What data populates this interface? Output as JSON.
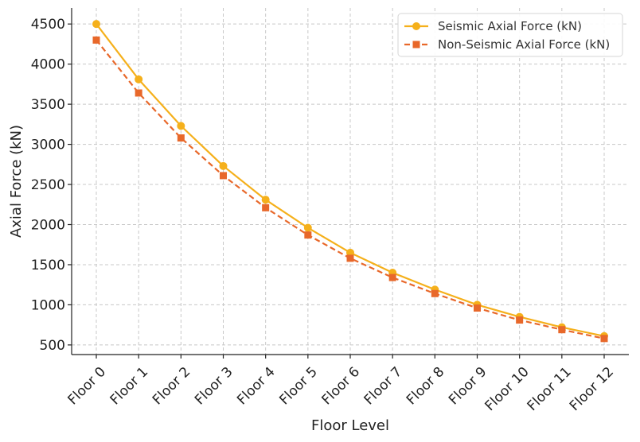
{
  "chart_data": {
    "type": "line",
    "title": "",
    "xlabel": "Floor Level",
    "ylabel": "Axial Force (kN)",
    "categories": [
      "Floor 0",
      "Floor 1",
      "Floor 2",
      "Floor 3",
      "Floor 4",
      "Floor 5",
      "Floor 6",
      "Floor 7",
      "Floor 8",
      "Floor 9",
      "Floor 10",
      "Floor 11",
      "Floor 12"
    ],
    "ylim": [
      380,
      4700
    ],
    "yticks": [
      500,
      1000,
      1500,
      2000,
      2500,
      3000,
      3500,
      4000,
      4500
    ],
    "grid": true,
    "legend_position": "top-right",
    "series": [
      {
        "name": "Seismic Axial Force (kN)",
        "color": "#f5b01b",
        "marker": "circle",
        "line_style": "solid",
        "values": [
          4500,
          3810,
          3230,
          2730,
          2310,
          1960,
          1650,
          1400,
          1190,
          1000,
          850,
          720,
          610
        ]
      },
      {
        "name": "Non-Seismic Axial Force (kN)",
        "color": "#e8682a",
        "marker": "square",
        "line_style": "dashed",
        "values": [
          4300,
          3640,
          3080,
          2610,
          2210,
          1870,
          1580,
          1340,
          1140,
          960,
          810,
          690,
          580
        ]
      }
    ]
  }
}
